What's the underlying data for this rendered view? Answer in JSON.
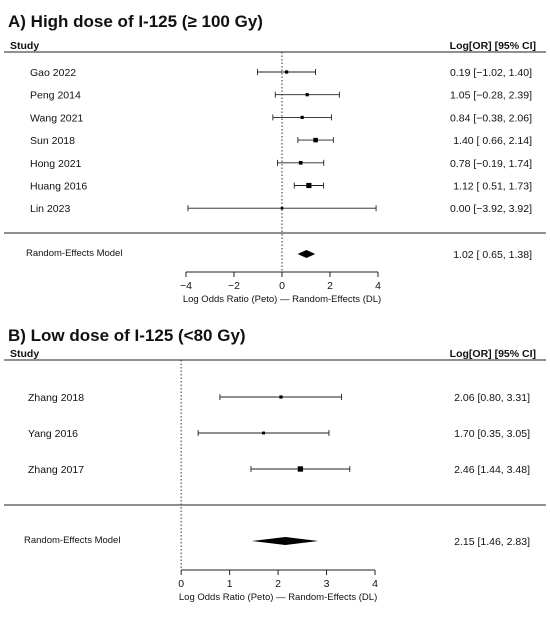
{
  "chart_data": [
    {
      "type": "forest",
      "panel_title": "A) High dose of I-125 (≥ 100 Gy)",
      "study_header": "Study",
      "estimate_header": "Log[OR] [95% CI]",
      "xlabel": "Log Odds Ratio (Peto) — Random-Effects (DL)",
      "xlim": [
        -5,
        4
      ],
      "xticks": [
        -4,
        -2,
        0,
        2,
        4
      ],
      "reference_line": 0,
      "studies": [
        {
          "name": "Gao 2022",
          "est": 0.19,
          "lo": -1.02,
          "hi": 1.4,
          "ci_text": "0.19 [−1.02, 1.40]",
          "weight": 1
        },
        {
          "name": "Peng 2014",
          "est": 1.05,
          "lo": -0.28,
          "hi": 2.39,
          "ci_text": "1.05 [−0.28, 2.39]",
          "weight": 1
        },
        {
          "name": "Wang 2021",
          "est": 0.84,
          "lo": -0.38,
          "hi": 2.06,
          "ci_text": "0.84 [−0.38, 2.06]",
          "weight": 1
        },
        {
          "name": "Sun 2018",
          "est": 1.4,
          "lo": 0.66,
          "hi": 2.14,
          "ci_text": "1.40 [ 0.66, 2.14]",
          "weight": 2
        },
        {
          "name": "Hong 2021",
          "est": 0.78,
          "lo": -0.19,
          "hi": 1.74,
          "ci_text": "0.78 [−0.19, 1.74]",
          "weight": 1.3
        },
        {
          "name": "Huang 2016",
          "est": 1.12,
          "lo": 0.51,
          "hi": 1.73,
          "ci_text": "1.12 [ 0.51, 1.73]",
          "weight": 2.6
        },
        {
          "name": "Lin 2023",
          "est": 0.0,
          "lo": -3.92,
          "hi": 3.92,
          "ci_text": "0.00 [−3.92, 3.92]",
          "weight": 0.4
        }
      ],
      "summary": {
        "name": "Random-Effects Model",
        "est": 1.02,
        "lo": 0.65,
        "hi": 1.38,
        "ci_text": "1.02 [ 0.65, 1.38]"
      }
    },
    {
      "type": "forest",
      "panel_title": "B) Low dose of I-125  (<80 Gy)",
      "study_header": "Study",
      "estimate_header": "Log[OR] [95% CI]",
      "xlabel": "Log Odds Ratio (Peto) — Random-Effects (DL)",
      "xlim": [
        -2.5,
        4
      ],
      "xticks": [
        0,
        1,
        2,
        3,
        4
      ],
      "reference_line": 0,
      "studies": [
        {
          "name": "Zhang 2018",
          "est": 2.06,
          "lo": 0.8,
          "hi": 3.31,
          "ci_text": "2.06 [0.80, 3.31]",
          "weight": 1
        },
        {
          "name": "Yang 2016",
          "est": 1.7,
          "lo": 0.35,
          "hi": 3.05,
          "ci_text": "1.70 [0.35, 3.05]",
          "weight": 0.8
        },
        {
          "name": "Zhang 2017",
          "est": 2.46,
          "lo": 1.44,
          "hi": 3.48,
          "ci_text": "2.46 [1.44, 3.48]",
          "weight": 2.8
        }
      ],
      "summary": {
        "name": "Random-Effects Model",
        "est": 2.15,
        "lo": 1.46,
        "hi": 2.83,
        "ci_text": "2.15 [1.46, 2.83]"
      }
    }
  ]
}
